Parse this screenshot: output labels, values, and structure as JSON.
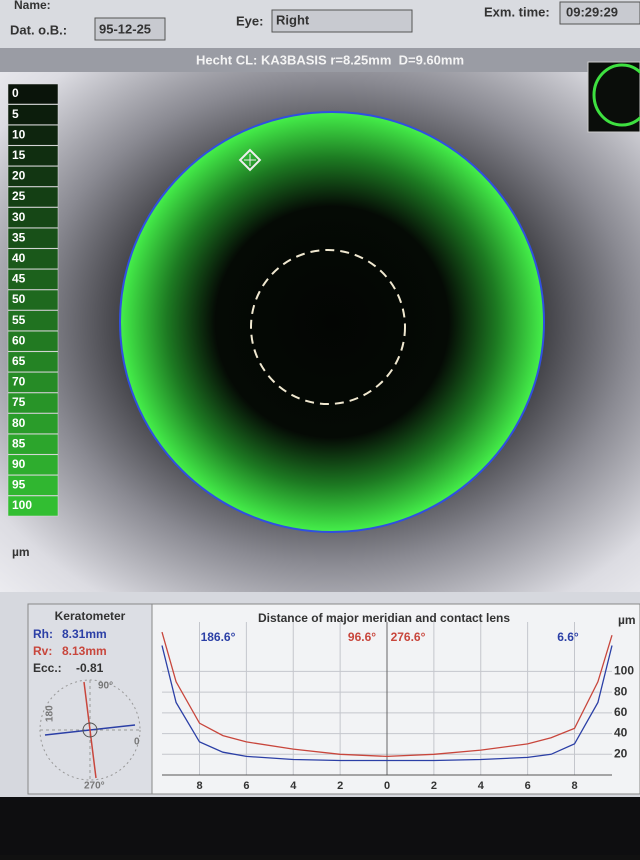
{
  "header": {
    "name_label": "Name:",
    "dob_label": "Dat. o.B.:",
    "dob": "95-12-25",
    "eye_label": "Eye:",
    "eye": "Right",
    "exam_label": "Exm. time:",
    "exam_time": "09:29:29"
  },
  "lens": "Hecht CL: KA3BASIS r=8.25mm  D=9.60mm",
  "scale": {
    "steps": [
      0,
      5,
      10,
      15,
      20,
      25,
      30,
      35,
      40,
      45,
      50,
      55,
      60,
      65,
      70,
      75,
      80,
      85,
      90,
      95,
      100
    ],
    "unit": "µm"
  },
  "keratometer": {
    "title": "Keratometer",
    "rh_label": "Rh:",
    "rh": "8.31mm",
    "rv_label": "Rv:",
    "rv": "8.13mm",
    "ecc_label": "Ecc.:",
    "ecc": "-0.81",
    "dial": [
      "90°",
      "180",
      "0",
      "270°"
    ]
  },
  "chart_data": {
    "type": "line",
    "title": "Distance of major meridian and contact lens",
    "unit": "µm",
    "x": [
      -9.6,
      -9,
      -8,
      -7,
      -6,
      -4,
      -2,
      0,
      2,
      4,
      6,
      7,
      8,
      9,
      9.6
    ],
    "series": [
      {
        "color": "#2b3fa6",
        "values": [
          125,
          70,
          32,
          22,
          18,
          15,
          14,
          14,
          14,
          15,
          17,
          20,
          30,
          70,
          125
        ]
      },
      {
        "color": "#c8463c",
        "values": [
          138,
          90,
          50,
          38,
          32,
          25,
          20,
          18,
          20,
          24,
          30,
          36,
          45,
          90,
          135
        ]
      }
    ],
    "annotations": [
      {
        "text": "186.6°",
        "color": "#2b3fa6"
      },
      {
        "text": "96.6°",
        "color": "#c8463c"
      },
      {
        "text": "276.6°",
        "color": "#c8463c"
      },
      {
        "text": "6.6°",
        "color": "#2b3fa6"
      }
    ],
    "xlim": [
      -9.6,
      9.6
    ],
    "ylim": [
      0,
      140
    ],
    "xticks": [
      {
        "value": -8,
        "label": "8"
      },
      {
        "value": -6,
        "label": "6"
      },
      {
        "value": -4,
        "label": "4"
      },
      {
        "value": -2,
        "label": "2"
      },
      0,
      2,
      4,
      6,
      8
    ],
    "yticks": [
      20,
      40,
      60,
      80,
      100
    ],
    "grid": true
  }
}
